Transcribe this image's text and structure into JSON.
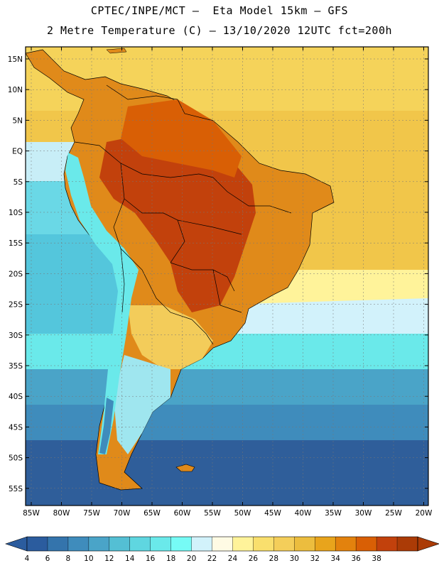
{
  "header": {
    "line1": "CPTEC/INPE/MCT –  Eta Model 15km – GFS",
    "line2": "2 Metre Temperature (C) – 13/10/2020 12UTC fct=200h"
  },
  "map": {
    "region": "South America",
    "lat_labels": [
      "15N",
      "10N",
      "5N",
      "EQ",
      "5S",
      "10S",
      "15S",
      "20S",
      "25S",
      "30S",
      "35S",
      "40S",
      "45S",
      "50S",
      "55S"
    ],
    "lon_labels": [
      "85W",
      "80W",
      "75W",
      "70W",
      "65W",
      "60W",
      "55W",
      "50W",
      "45W",
      "40W",
      "35W",
      "30W",
      "25W",
      "20W"
    ]
  },
  "colorbar": {
    "ticks": [
      "4",
      "6",
      "8",
      "10",
      "12",
      "14",
      "16",
      "18",
      "20",
      "22",
      "24",
      "26",
      "28",
      "30",
      "32",
      "34",
      "36",
      "38"
    ],
    "colors": [
      "#2b5c9e",
      "#3474ac",
      "#3f8cbc",
      "#4aa4c8",
      "#54bfd4",
      "#5fd6e0",
      "#6ae9ea",
      "#76fbf6",
      "#d2f2fb",
      "#fffbe4",
      "#fff39a",
      "#f9df6d",
      "#f4ce5a",
      "#ecbd3e",
      "#e8a41c",
      "#e3820d",
      "#d95f05",
      "#c2410c",
      "#ab3b06"
    ]
  },
  "colors": {
    "ocean_far_south": "#2f5e9a",
    "ocean_mid_south": "#3a86b8",
    "ocean_cool": "#46b9d4",
    "ocean_temperate": "#6ad8e6",
    "ocean_warm": "#f5d35a",
    "ocean_tropical": "#f1c64a",
    "land_hot": "#c2410c",
    "land_warm": "#e08a1a",
    "land_mild": "#f3cc5a",
    "andes": "#6ae9ea"
  }
}
